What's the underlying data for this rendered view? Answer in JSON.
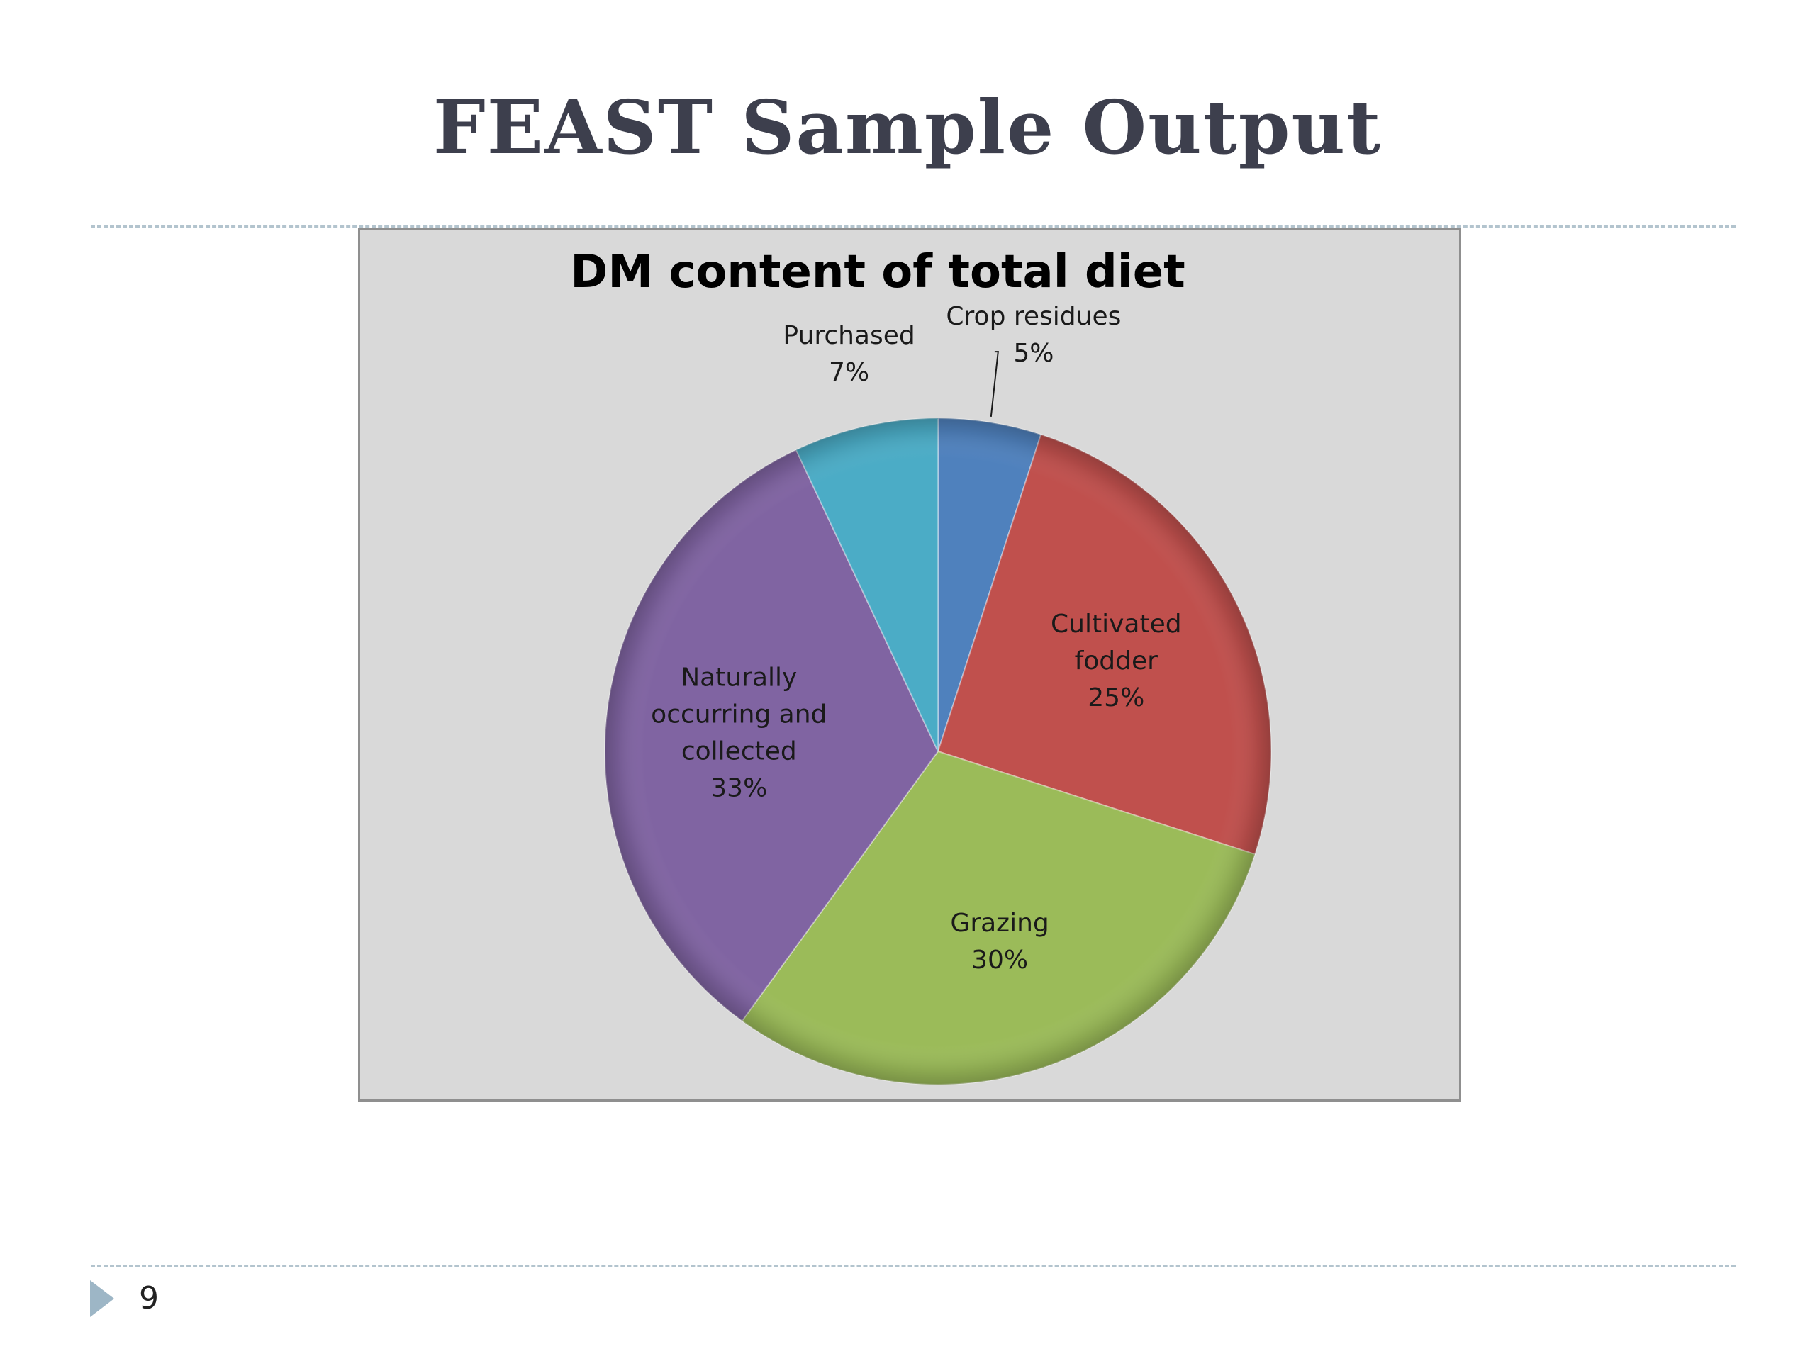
{
  "slide": {
    "title": "FEAST Sample Output",
    "page_number": "9"
  },
  "chart_data": {
    "type": "pie",
    "title": "DM content of total diet",
    "slices": [
      {
        "name": "Crop residues",
        "value": 5,
        "value_label": "5%",
        "label_lines": [
          "Crop residues",
          "5%"
        ],
        "color": "#4f81bd"
      },
      {
        "name": "Cultivated fodder",
        "value": 25,
        "value_label": "25%",
        "label_lines": [
          "Cultivated",
          "fodder",
          "25%"
        ],
        "color": "#c0504d"
      },
      {
        "name": "Grazing",
        "value": 30,
        "value_label": "30%",
        "label_lines": [
          "Grazing",
          "30%"
        ],
        "color": "#9bbb59"
      },
      {
        "name": "Naturally occurring and collected",
        "value": 33,
        "value_label": "33%",
        "label_lines": [
          "Naturally",
          "occurring and",
          "collected",
          "33%"
        ],
        "color": "#8064a2"
      },
      {
        "name": "Purchased",
        "value": 7,
        "value_label": "7%",
        "label_lines": [
          "Purchased",
          "7%"
        ],
        "color": "#4bacc6"
      }
    ],
    "start": "12 o'clock",
    "direction": "clockwise",
    "legend": "none"
  }
}
